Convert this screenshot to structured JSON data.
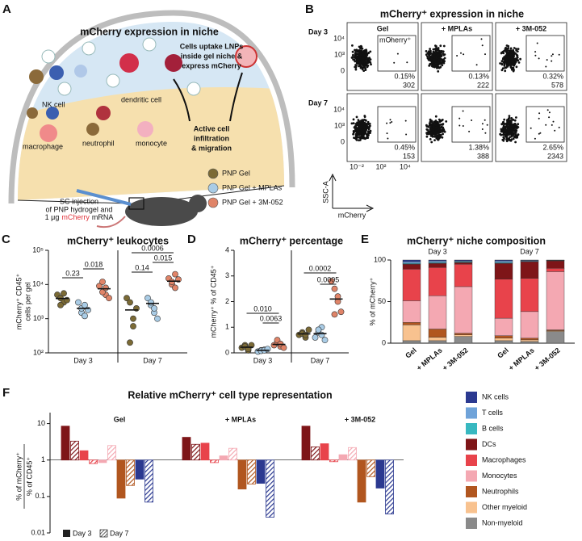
{
  "figure": {
    "panel_a": {
      "label": "A",
      "title": "mCherry expression in niche",
      "uptake": [
        "Cells uptake LNPs",
        "inside gel niche &",
        "express mCherry"
      ],
      "cells": [
        "NK cell",
        "dendritic cell",
        "macrophage",
        "neutrophil",
        "monocyte"
      ],
      "migration": [
        "Active cell",
        "infiltration",
        "& migration"
      ],
      "injection": [
        "SC injection",
        "of PNP hydrogel and"
      ],
      "dose": [
        "1 μg",
        "mCherry",
        "mRNA"
      ]
    },
    "panel_b": {
      "label": "B",
      "title": "mCherry⁺ expression in niche",
      "columns": [
        "Gel",
        "+ MPLAs",
        "+ 3M-052"
      ],
      "rows": [
        "Day 3",
        "Day 7"
      ],
      "gate": "mCherry⁺",
      "yticks": [
        "10⁴",
        "10³",
        "0"
      ],
      "xticks": [
        "10⁻²",
        "10²",
        "10⁴"
      ],
      "ylabel": "SSC-A",
      "xlabel": "mCherry",
      "percent": [
        [
          "0.15%",
          "0.13%",
          "0.32%"
        ],
        [
          "0.45%",
          "1.38%",
          "2.65%"
        ]
      ],
      "counts": [
        [
          302,
          222,
          578
        ],
        [
          153,
          388,
          2343
        ]
      ]
    }
  },
  "chart_data": [
    {
      "panel": "C",
      "type": "strip",
      "title": "mCherry⁺ leukocytes",
      "ylabel": [
        "mCherry⁺ CD45⁺",
        "cells per gel"
      ],
      "log": true,
      "ylim": [
        100,
        100000
      ],
      "yticks": [
        {
          "value": 100,
          "label": "10²"
        },
        {
          "value": 1000,
          "label": "10³"
        },
        {
          "value": 10000,
          "label": "10⁴"
        },
        {
          "value": 100000,
          "label": "10⁵"
        }
      ],
      "categories": [
        "Day 3",
        "Day 7"
      ],
      "series": [
        {
          "name": "PNP Gel",
          "color": "#7b6a35",
          "values": [
            [
              5000,
              4000,
              3000,
              2500,
              5500,
              3500
            ],
            [
              4000,
              3000,
              600,
              200,
              1000,
              2000
            ]
          ],
          "means": [
            3900,
            1800
          ]
        },
        {
          "name": "PNP Gel + MPLAs",
          "color": "#a9cce6",
          "values": [
            [
              3000,
              1500,
              1200,
              2000,
              2500,
              1800
            ],
            [
              4000,
              2500,
              1500,
              3000,
              2000,
              1000
            ]
          ],
          "means": [
            2000,
            2800
          ]
        },
        {
          "name": "PNP Gel + 3M-052",
          "color": "#e08468",
          "values": [
            [
              9000,
              12000,
              5000,
              6000,
              8000,
              4000
            ],
            [
              15000,
              10000,
              20000,
              12000,
              8000,
              14000
            ]
          ],
          "means": [
            7500,
            12500
          ]
        }
      ],
      "p_values": [
        [
          "0.23",
          "0.018"
        ],
        [
          "0.14",
          "0.015",
          "0.0006"
        ]
      ]
    },
    {
      "panel": "D",
      "type": "strip",
      "title": "mCherry⁺ percentage",
      "ylabel": [
        "mCherry⁺ % of CD45⁺"
      ],
      "log": false,
      "ylim": [
        0,
        4
      ],
      "yticks": [
        0,
        1,
        2,
        3,
        4
      ],
      "categories": [
        "Day 3",
        "Day 7"
      ],
      "series": [
        {
          "values": [
            [
              0.2,
              0.3,
              0.1,
              0.25,
              0.15,
              0.3
            ],
            [
              0.7,
              0.8,
              0.6,
              0.75,
              0.7,
              0.9
            ]
          ],
          "means": [
            0.22,
            0.74
          ]
        },
        {
          "values": [
            [
              0.05,
              0.1,
              0.12,
              0.08,
              0.1,
              0.15
            ],
            [
              0.6,
              0.8,
              1.0,
              0.9,
              0.7,
              0.5
            ]
          ],
          "means": [
            0.1,
            0.75
          ]
        },
        {
          "values": [
            [
              0.3,
              0.4,
              0.25,
              0.5,
              0.35,
              0.2
            ],
            [
              2.8,
              2.5,
              2.0,
              1.5,
              2.2,
              1.6
            ]
          ],
          "means": [
            0.33,
            2.1
          ]
        }
      ],
      "p_values": [
        [
          "0.010",
          "0.0063"
        ],
        [
          "0.0002",
          "0.0005"
        ]
      ]
    },
    {
      "panel": "E",
      "type": "stacked-bar",
      "title": "mCherry⁺ niche composition",
      "ylabel": "% of mCherry⁺",
      "ylim": [
        0,
        100
      ],
      "yticks": [
        0,
        50,
        100
      ],
      "groups": [
        "Day 3",
        "Day 7"
      ],
      "categories": [
        "Gel",
        "+ MPLAs",
        "+ 3M-052",
        "Gel",
        "+ MPLAs",
        "+ 3M-052"
      ],
      "series": [
        {
          "name": "NK cells",
          "color": "#2b3990",
          "values": [
            2,
            1,
            1,
            1,
            0.5,
            0.3
          ]
        },
        {
          "name": "T cells",
          "color": "#6fa3d9",
          "values": [
            2,
            2,
            1,
            2,
            1,
            0.4
          ]
        },
        {
          "name": "B cells",
          "color": "#38b8c0",
          "values": [
            1,
            1,
            1,
            1,
            0.5,
            0.3
          ]
        },
        {
          "name": "DCs",
          "color": "#7e1518",
          "values": [
            6,
            5,
            2,
            19,
            20,
            9
          ]
        },
        {
          "name": "Macrophages",
          "color": "#e8434b",
          "values": [
            38,
            34,
            27,
            47,
            40,
            4
          ]
        },
        {
          "name": "Monocytes",
          "color": "#f4a8b2",
          "values": [
            26,
            40,
            56,
            21,
            32,
            70
          ]
        },
        {
          "name": "Neutrophils",
          "color": "#b1561f",
          "values": [
            3,
            10,
            2,
            3,
            2,
            1
          ]
        },
        {
          "name": "Other myeloid",
          "color": "#f8c28f",
          "values": [
            19,
            4,
            2,
            3,
            2,
            1
          ]
        },
        {
          "name": "Non-myeloid",
          "color": "#8a8a8a",
          "values": [
            3,
            3,
            8,
            3,
            2,
            14
          ]
        }
      ]
    },
    {
      "panel": "F",
      "type": "grouped-bar",
      "title": "Relative mCherry⁺ cell type representation",
      "ylabel": [
        "% of mCherry⁺",
        "% of CD45⁺"
      ],
      "log": true,
      "ylim": [
        0.01,
        20
      ],
      "yticks": [
        {
          "value": 0.01,
          "label": "0.01"
        },
        {
          "value": 0.1,
          "label": "0.1"
        },
        1,
        10
      ],
      "bar_origin": 1,
      "categories": [
        "Gel",
        "+ MPLAs",
        "+ 3M-052"
      ],
      "days": [
        "Day 3",
        "Day 7"
      ],
      "series": [
        {
          "name": "DCs",
          "color": "#7e1518",
          "values": [
            [
              8.5,
              3.3
            ],
            [
              4.2,
              2.7
            ],
            [
              8.5,
              2.3
            ]
          ]
        },
        {
          "name": "Macrophages",
          "color": "#e8434b",
          "values": [
            [
              1.8,
              0.8
            ],
            [
              2.9,
              0.85
            ],
            [
              2.8,
              0.9
            ]
          ]
        },
        {
          "name": "Monocytes",
          "color": "#f4a8b2",
          "values": [
            [
              0.85,
              2.5
            ],
            [
              1.3,
              2.1
            ],
            [
              1.4,
              2.2
            ]
          ]
        },
        {
          "name": "Neutrophils",
          "color": "#b1561f",
          "values": [
            [
              0.09,
              0.2
            ],
            [
              0.16,
              0.22
            ],
            [
              0.07,
              0.35
            ]
          ]
        },
        {
          "name": "NK cells",
          "color": "#2b3990",
          "values": [
            [
              0.3,
              0.07
            ],
            [
              0.23,
              0.027
            ],
            [
              0.17,
              0.033
            ]
          ]
        }
      ]
    }
  ]
}
